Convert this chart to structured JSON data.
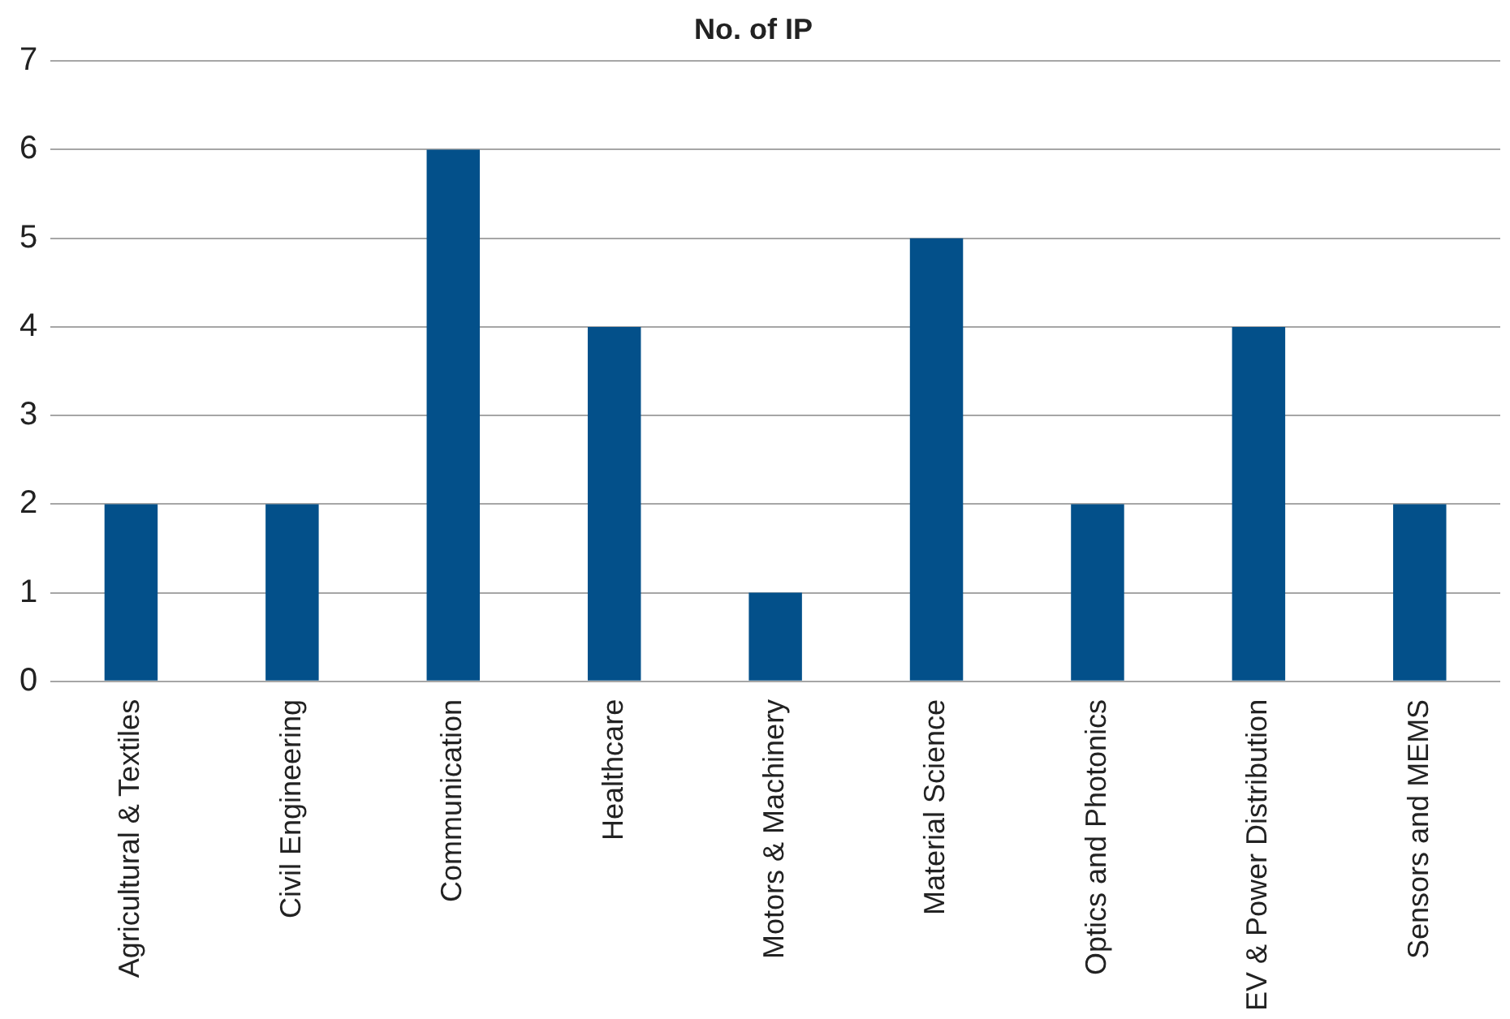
{
  "chart_data": {
    "type": "bar",
    "title": "No. of IP",
    "categories": [
      "Agricultural & Textiles",
      "Civil Engineering",
      "Communication",
      "Healthcare",
      "Motors & Machinery",
      "Material Science",
      "Optics and Photonics",
      "EV & Power Distribution",
      "Sensors and MEMS"
    ],
    "values": [
      2,
      2,
      6,
      4,
      1,
      5,
      2,
      4,
      2
    ],
    "color": "#03508a",
    "ylim": [
      0,
      7
    ],
    "yticks": [
      0,
      1,
      2,
      3,
      4,
      5,
      6,
      7
    ],
    "grid": "y"
  }
}
